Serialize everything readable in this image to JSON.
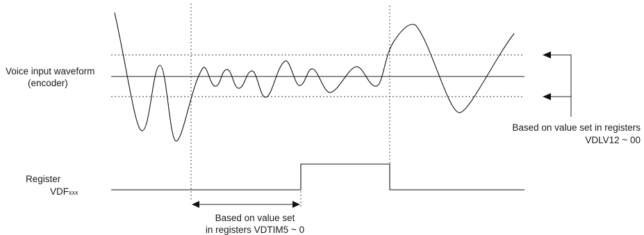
{
  "labels": {
    "waveform_line1": "Voice input waveform",
    "waveform_line2": "(encoder)",
    "register_line1": "Register",
    "register_name_main": "VDF",
    "register_name_sub": "xxx",
    "level_note_line1": "Based on value set in registers",
    "level_note_line2": "VDLV12 ~ 00",
    "time_note_line1": "Based on value set",
    "time_note_line2": "in registers VDTIM5 ~ 0"
  }
}
